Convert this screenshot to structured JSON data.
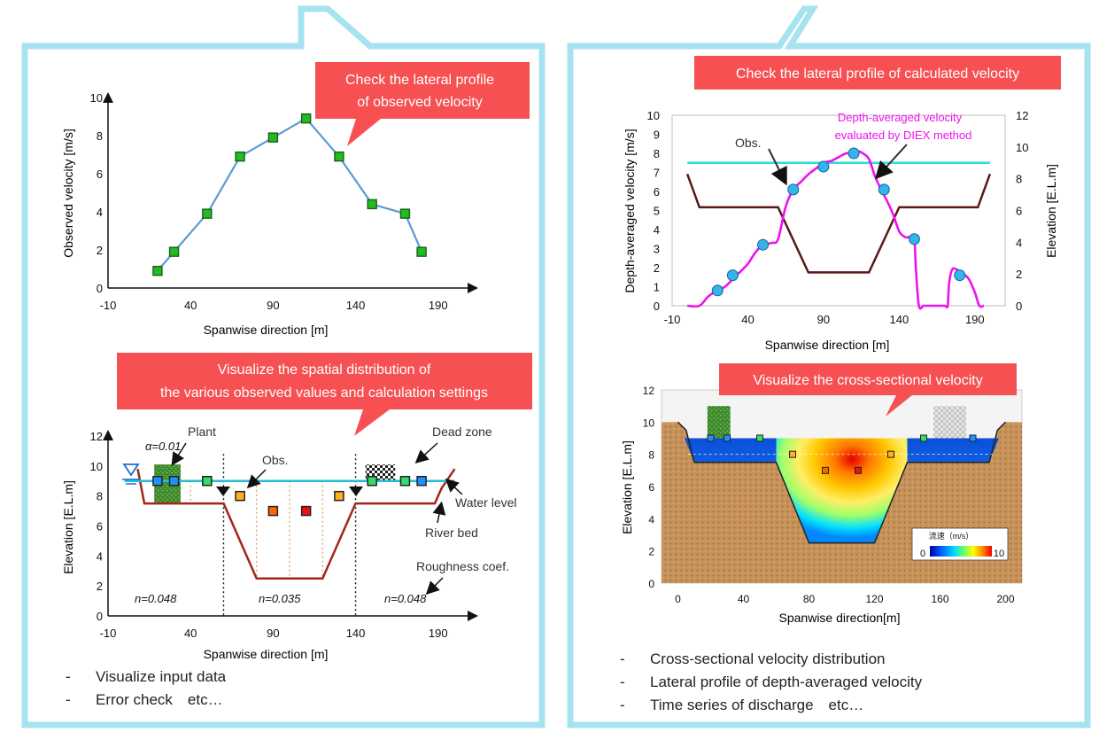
{
  "colors": {
    "panel_border": "#a6e3f0",
    "callout": "#f65052",
    "line_blue": "#5b9bd5",
    "marker_green": "#22bb22",
    "bed": "#a3251b",
    "water": "#27bcd6",
    "calc_line": "#ee11ee",
    "obs_dot": "#33b5ec",
    "bank_line": "#5a1818",
    "cyan_line": "#30dcdc",
    "soil": "#c08a50"
  },
  "left_panel": {
    "callout_observed": [
      "Check the lateral profile",
      "of observed velocity"
    ],
    "callout_spatial": [
      "Visualize the spatial distribution of",
      "the various observed values and calculation settings"
    ],
    "bullets": [
      "Visualize input data",
      "Error check　etc…"
    ]
  },
  "right_panel": {
    "callout_calculated": "Check the lateral profile of calculated velocity",
    "callout_cross": "Visualize the cross-sectional velocity",
    "bullets": [
      "Cross-sectional velocity distribution",
      "Lateral profile of depth-averaged velocity",
      "Time series of discharge　etc…"
    ]
  },
  "chart_data": [
    {
      "id": "observed_velocity",
      "type": "line",
      "xlabel": "Spanwise direction [m]",
      "ylabel": "Observed velocity [m/s]",
      "xlim": [
        -10,
        210
      ],
      "ylim": [
        0,
        10
      ],
      "xticks": [
        -10,
        40,
        90,
        140,
        190
      ],
      "yticks": [
        0,
        2,
        4,
        6,
        8,
        10
      ],
      "series": [
        {
          "name": "Observed velocity",
          "x": [
            20,
            30,
            50,
            70,
            90,
            110,
            130,
            150,
            170,
            180
          ],
          "y": [
            0.9,
            1.9,
            3.9,
            6.9,
            7.9,
            8.9,
            6.9,
            4.4,
            3.9,
            1.9
          ]
        }
      ]
    },
    {
      "id": "spatial_distribution",
      "type": "line",
      "xlabel": "Spanwise direction [m]",
      "ylabel": "Elevation [E.L.m]",
      "xlim": [
        -10,
        210
      ],
      "ylim": [
        0,
        12
      ],
      "xticks": [
        -10,
        40,
        90,
        140,
        190
      ],
      "yticks": [
        0,
        2,
        4,
        6,
        8,
        10,
        12
      ],
      "series": [
        {
          "name": "River bed",
          "x": [
            8,
            12,
            60,
            80,
            120,
            140,
            188,
            192,
            200
          ],
          "y": [
            9.8,
            7.5,
            7.5,
            2.5,
            2.5,
            7.5,
            7.5,
            8.5,
            9.8
          ]
        },
        {
          "name": "Water level",
          "x": [
            0,
            200
          ],
          "y": [
            9,
            9
          ]
        }
      ],
      "observed_points": [
        {
          "x": 20,
          "y": 9,
          "color": "#1e90ff"
        },
        {
          "x": 30,
          "y": 9,
          "color": "#1e90ff"
        },
        {
          "x": 50,
          "y": 9,
          "color": "#33dd66"
        },
        {
          "x": 70,
          "y": 8,
          "color": "#ffb020"
        },
        {
          "x": 90,
          "y": 7,
          "color": "#ff6600"
        },
        {
          "x": 110,
          "y": 7,
          "color": "#ee1111"
        },
        {
          "x": 130,
          "y": 8,
          "color": "#ffb020"
        },
        {
          "x": 150,
          "y": 9,
          "color": "#33dd66"
        },
        {
          "x": 170,
          "y": 9,
          "color": "#33dd66"
        },
        {
          "x": 180,
          "y": 9,
          "color": "#1e90ff"
        }
      ],
      "dividers_x": [
        60,
        140
      ],
      "plant_zone": [
        18,
        34
      ],
      "dead_zone": [
        146,
        164
      ],
      "labels": {
        "plant": "Plant",
        "obs": "Obs.",
        "dead_zone": "Dead zone",
        "water_level": "Water level",
        "river_bed": "River bed",
        "roughness": "Roughness coef.",
        "alpha": "α=0.01",
        "n_left": "n=0.048",
        "n_center": "n=0.035",
        "n_right": "n=0.048"
      }
    },
    {
      "id": "calculated_velocity",
      "type": "line",
      "xlabel": "Spanwise direction [m]",
      "ylabel": "Depth-averaged velocity [m/s]",
      "y2label": "Elevation [E.L.m]",
      "xlim": [
        -10,
        210
      ],
      "ylim": [
        0,
        10
      ],
      "y2lim": [
        0,
        12
      ],
      "xticks": [
        -10,
        40,
        90,
        140,
        190
      ],
      "yticks": [
        0,
        1,
        2,
        3,
        4,
        5,
        6,
        7,
        8,
        9,
        10
      ],
      "y2ticks": [
        0,
        2,
        4,
        6,
        8,
        10,
        12
      ],
      "series": [
        {
          "name": "Depth-averaged velocity evaluated by DIEX method",
          "x": [
            0,
            8,
            14,
            20,
            25,
            30,
            34,
            40,
            45,
            50,
            56,
            60,
            65,
            70,
            75,
            80,
            85,
            90,
            95,
            100,
            105,
            110,
            113,
            116,
            120,
            124,
            128,
            132,
            136,
            140,
            144,
            147,
            150,
            151,
            153,
            156,
            158,
            160,
            163,
            170,
            172,
            173,
            175,
            178,
            182,
            186,
            190,
            193,
            196
          ],
          "y": [
            0,
            0,
            0.5,
            0.8,
            1.0,
            1.4,
            1.7,
            2.2,
            2.8,
            3.2,
            3.3,
            3.5,
            5.2,
            6.1,
            6.5,
            6.9,
            7.2,
            7.5,
            7.6,
            7.8,
            8.0,
            8.0,
            8.1,
            8.0,
            7.7,
            6.8,
            6.1,
            5.5,
            4.8,
            3.9,
            3.6,
            3.6,
            3.4,
            2.0,
            0,
            0,
            0,
            0,
            0,
            0,
            0,
            1.2,
            1.9,
            1.9,
            1.7,
            1.4,
            0.7,
            0,
            0
          ]
        },
        {
          "name": "Elevation",
          "x": [
            0,
            8,
            60,
            80,
            120,
            140,
            192,
            200
          ],
          "y": [
            8.3,
            6.2,
            6.2,
            2.1,
            2.1,
            6.2,
            6.2,
            8.3
          ],
          "axis": "right"
        },
        {
          "name": "Water level",
          "x": [
            0,
            200
          ],
          "y": [
            7.5,
            7.5
          ]
        }
      ],
      "observed_points": {
        "x": [
          20,
          30,
          50,
          70,
          90,
          110,
          130,
          150,
          180
        ],
        "y": [
          0.8,
          1.6,
          3.2,
          6.1,
          7.3,
          8.0,
          6.1,
          3.5,
          1.6
        ]
      },
      "labels": {
        "obs": "Obs.",
        "calc_line": [
          "Depth-averaged velocity",
          "evaluated by DIEX method"
        ]
      }
    },
    {
      "id": "cross_section",
      "type": "heatmap",
      "xlabel": "Spanwise direction[m]",
      "ylabel": "Elevation [E.L.m]",
      "xlim": [
        -10,
        210
      ],
      "ylim": [
        0,
        12
      ],
      "xticks": [
        0,
        40,
        80,
        120,
        160,
        200
      ],
      "yticks": [
        0,
        2,
        4,
        6,
        8,
        10,
        12
      ],
      "water_level": 9,
      "channel": {
        "x": [
          0,
          5,
          10,
          60,
          80,
          120,
          140,
          190,
          195,
          200
        ],
        "y": [
          10,
          9.5,
          7.5,
          7.5,
          2.5,
          2.5,
          7.5,
          7.5,
          9.5,
          10
        ]
      },
      "colorbar": {
        "title": "流速（m/s）",
        "min": 0,
        "max": 10
      },
      "points": [
        {
          "x": 20,
          "y": 9,
          "color": "#1e90ff"
        },
        {
          "x": 30,
          "y": 9,
          "color": "#1e90ff"
        },
        {
          "x": 50,
          "y": 9,
          "color": "#33dd66"
        },
        {
          "x": 70,
          "y": 8,
          "color": "#ffb020"
        },
        {
          "x": 90,
          "y": 7,
          "color": "#ff6600"
        },
        {
          "x": 110,
          "y": 7,
          "color": "#ee1111"
        },
        {
          "x": 130,
          "y": 8,
          "color": "#ffb020"
        },
        {
          "x": 150,
          "y": 9,
          "color": "#33dd66"
        },
        {
          "x": 180,
          "y": 9,
          "color": "#1e90ff"
        }
      ],
      "plant_zone": [
        18,
        32
      ],
      "dead_zone": [
        156,
        176
      ]
    }
  ]
}
